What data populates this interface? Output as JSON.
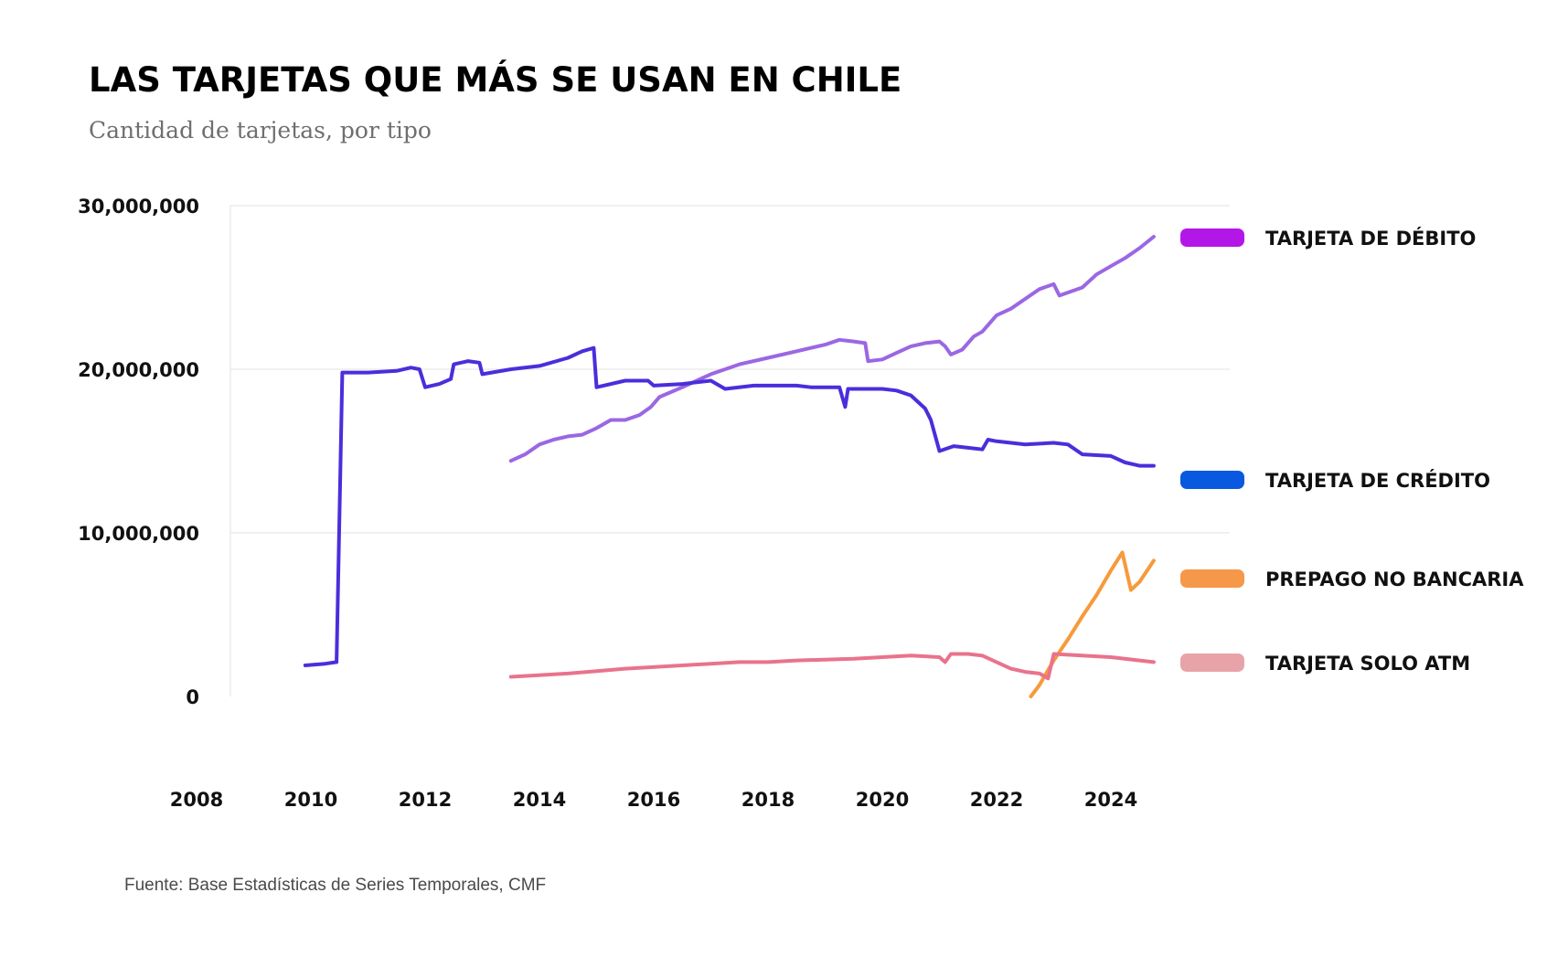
{
  "title": "LAS TARJETAS QUE MÁS SE USAN EN CHILE",
  "subtitle": "Cantidad de tarjetas, por tipo",
  "source": "Fuente: Base Estadísticas de Series Temporales, CMF",
  "chart_data": {
    "type": "line",
    "title": "LAS TARJETAS QUE MÁS SE USAN EN CHILE",
    "subtitle": "Cantidad de tarjetas, por tipo",
    "xlabel": "",
    "ylabel": "",
    "xlim": [
      2008,
      2025
    ],
    "ylim": [
      0,
      30000000
    ],
    "x_ticks": [
      {
        "value": 2008,
        "label": "2008"
      },
      {
        "value": 2010,
        "label": "2010"
      },
      {
        "value": 2012,
        "label": "2012"
      },
      {
        "value": 2014,
        "label": "2014"
      },
      {
        "value": 2016,
        "label": "2016"
      },
      {
        "value": 2018,
        "label": "2018"
      },
      {
        "value": 2020,
        "label": "2020"
      },
      {
        "value": 2022,
        "label": "2022"
      },
      {
        "value": 2024,
        "label": "2024"
      }
    ],
    "y_ticks": [
      {
        "value": 0,
        "label": "0"
      },
      {
        "value": 10000000,
        "label": "10,000,000"
      },
      {
        "value": 20000000,
        "label": "20,000,000"
      },
      {
        "value": 30000000,
        "label": "30,000,000"
      }
    ],
    "grid": true,
    "legend_position": "right",
    "series": [
      {
        "name": "TARJETA DE DÉBITO",
        "legend_color": "#b217e8",
        "line_color": "#9b67e3",
        "points": [
          [
            2013.5,
            14400000
          ],
          [
            2013.75,
            14800000
          ],
          [
            2014.0,
            15400000
          ],
          [
            2014.25,
            15700000
          ],
          [
            2014.5,
            15900000
          ],
          [
            2014.75,
            16000000
          ],
          [
            2015.0,
            16400000
          ],
          [
            2015.25,
            16900000
          ],
          [
            2015.5,
            16900000
          ],
          [
            2015.75,
            17200000
          ],
          [
            2015.95,
            17700000
          ],
          [
            2016.1,
            18300000
          ],
          [
            2016.5,
            18900000
          ],
          [
            2017.0,
            19700000
          ],
          [
            2017.5,
            20300000
          ],
          [
            2018.0,
            20700000
          ],
          [
            2018.5,
            21100000
          ],
          [
            2019.0,
            21500000
          ],
          [
            2019.25,
            21800000
          ],
          [
            2019.5,
            21700000
          ],
          [
            2019.7,
            21600000
          ],
          [
            2019.75,
            20500000
          ],
          [
            2020.0,
            20600000
          ],
          [
            2020.25,
            21000000
          ],
          [
            2020.5,
            21400000
          ],
          [
            2020.75,
            21600000
          ],
          [
            2021.0,
            21700000
          ],
          [
            2021.1,
            21400000
          ],
          [
            2021.2,
            20900000
          ],
          [
            2021.4,
            21200000
          ],
          [
            2021.6,
            22000000
          ],
          [
            2021.75,
            22300000
          ],
          [
            2022.0,
            23300000
          ],
          [
            2022.25,
            23700000
          ],
          [
            2022.5,
            24300000
          ],
          [
            2022.75,
            24900000
          ],
          [
            2023.0,
            25200000
          ],
          [
            2023.1,
            24500000
          ],
          [
            2023.5,
            25000000
          ],
          [
            2023.75,
            25800000
          ],
          [
            2024.0,
            26300000
          ],
          [
            2024.25,
            26800000
          ],
          [
            2024.5,
            27400000
          ],
          [
            2024.75,
            28100000
          ]
        ]
      },
      {
        "name": "TARJETA DE CRÉDITO",
        "legend_color": "#0858e0",
        "line_color": "#4a2edc",
        "points": [
          [
            2009.9,
            1900000
          ],
          [
            2010.25,
            2000000
          ],
          [
            2010.45,
            2100000
          ],
          [
            2010.55,
            19800000
          ],
          [
            2010.75,
            19800000
          ],
          [
            2011.0,
            19800000
          ],
          [
            2011.5,
            19900000
          ],
          [
            2011.75,
            20100000
          ],
          [
            2011.9,
            20000000
          ],
          [
            2012.0,
            18900000
          ],
          [
            2012.25,
            19100000
          ],
          [
            2012.45,
            19400000
          ],
          [
            2012.5,
            20300000
          ],
          [
            2012.75,
            20500000
          ],
          [
            2012.95,
            20400000
          ],
          [
            2013.0,
            19700000
          ],
          [
            2013.5,
            20000000
          ],
          [
            2014.0,
            20200000
          ],
          [
            2014.5,
            20700000
          ],
          [
            2014.75,
            21100000
          ],
          [
            2014.95,
            21300000
          ],
          [
            2015.0,
            18900000
          ],
          [
            2015.5,
            19300000
          ],
          [
            2015.9,
            19300000
          ],
          [
            2016.0,
            19000000
          ],
          [
            2016.5,
            19100000
          ],
          [
            2017.0,
            19300000
          ],
          [
            2017.25,
            18800000
          ],
          [
            2017.75,
            19000000
          ],
          [
            2018.5,
            19000000
          ],
          [
            2018.75,
            18900000
          ],
          [
            2019.25,
            18900000
          ],
          [
            2019.35,
            17700000
          ],
          [
            2019.4,
            18800000
          ],
          [
            2019.75,
            18800000
          ],
          [
            2020.0,
            18800000
          ],
          [
            2020.25,
            18700000
          ],
          [
            2020.5,
            18400000
          ],
          [
            2020.75,
            17600000
          ],
          [
            2020.85,
            16900000
          ],
          [
            2021.0,
            15000000
          ],
          [
            2021.25,
            15300000
          ],
          [
            2021.5,
            15200000
          ],
          [
            2021.75,
            15100000
          ],
          [
            2021.85,
            15700000
          ],
          [
            2022.0,
            15600000
          ],
          [
            2022.5,
            15400000
          ],
          [
            2023.0,
            15500000
          ],
          [
            2023.25,
            15400000
          ],
          [
            2023.5,
            14800000
          ],
          [
            2024.0,
            14700000
          ],
          [
            2024.25,
            14300000
          ],
          [
            2024.5,
            14100000
          ],
          [
            2024.75,
            14100000
          ]
        ]
      },
      {
        "name": "PREPAGO NO BANCARIA",
        "legend_color": "#f6984a",
        "line_color": "#f69a3b",
        "points": [
          [
            2022.6,
            0
          ],
          [
            2022.75,
            700000
          ],
          [
            2023.0,
            2200000
          ],
          [
            2023.25,
            3500000
          ],
          [
            2023.5,
            4900000
          ],
          [
            2023.75,
            6200000
          ],
          [
            2024.0,
            7700000
          ],
          [
            2024.2,
            8800000
          ],
          [
            2024.35,
            6500000
          ],
          [
            2024.5,
            7000000
          ],
          [
            2024.75,
            8300000
          ]
        ]
      },
      {
        "name": "TARJETA SOLO ATM",
        "legend_color": "#e8a3a8",
        "line_color": "#e9738b",
        "points": [
          [
            2013.5,
            1200000
          ],
          [
            2014.5,
            1400000
          ],
          [
            2015.5,
            1700000
          ],
          [
            2016.5,
            1900000
          ],
          [
            2017.5,
            2100000
          ],
          [
            2018.0,
            2100000
          ],
          [
            2018.5,
            2200000
          ],
          [
            2019.5,
            2300000
          ],
          [
            2020.5,
            2500000
          ],
          [
            2021.0,
            2400000
          ],
          [
            2021.1,
            2100000
          ],
          [
            2021.2,
            2600000
          ],
          [
            2021.5,
            2600000
          ],
          [
            2021.75,
            2500000
          ],
          [
            2022.0,
            2100000
          ],
          [
            2022.25,
            1700000
          ],
          [
            2022.5,
            1500000
          ],
          [
            2022.75,
            1400000
          ],
          [
            2022.9,
            1100000
          ],
          [
            2023.0,
            2600000
          ],
          [
            2023.5,
            2500000
          ],
          [
            2024.0,
            2400000
          ],
          [
            2024.5,
            2200000
          ],
          [
            2024.75,
            2100000
          ]
        ]
      }
    ]
  }
}
